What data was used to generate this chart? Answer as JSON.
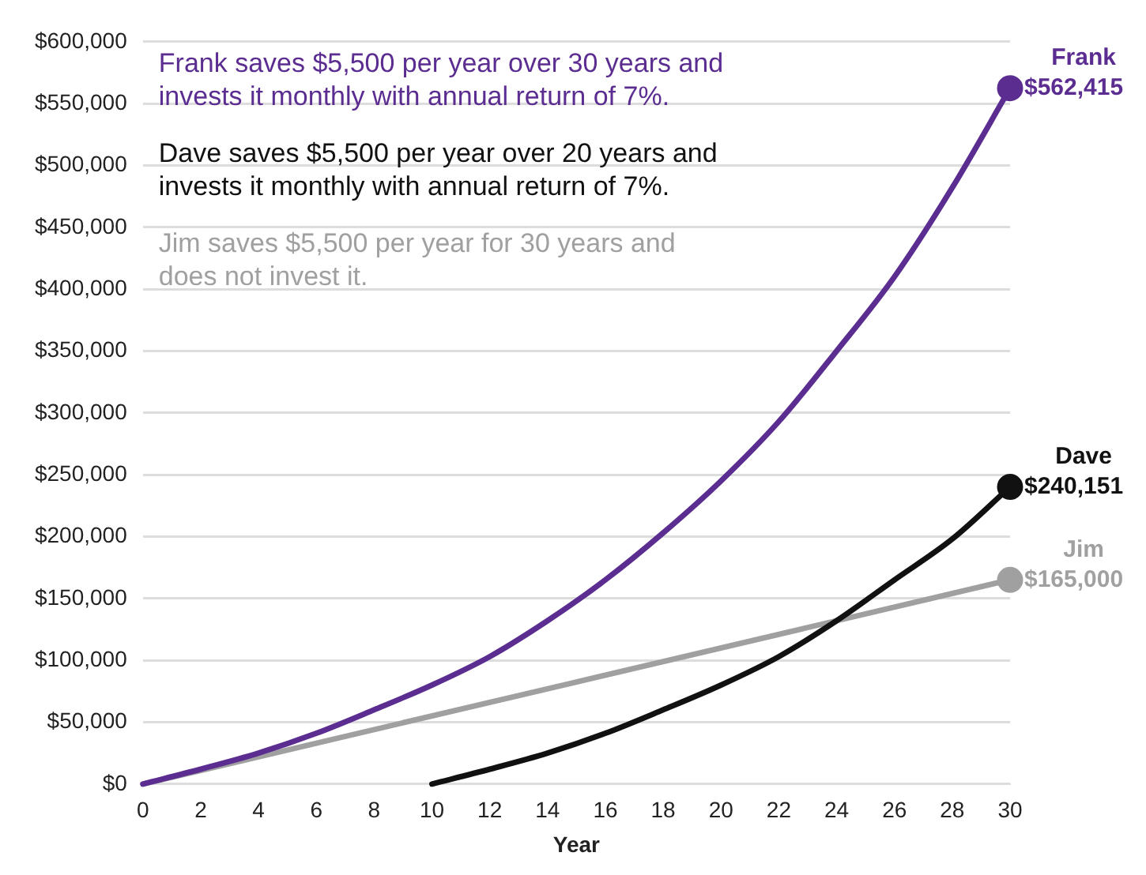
{
  "chart_data": {
    "type": "line",
    "xlabel": "Year",
    "annotations": [
      "Frank saves $5,500 per year over 30 years and invests it monthly with annual return of 7%.",
      "Dave saves $5,500 per year over 20 years and invests it monthly with annual return of 7%.",
      "Jim saves $5,500 per year for 30 years and does not invest it."
    ],
    "series": [
      {
        "color": "#5c2d91",
        "x": [
          0,
          2,
          4,
          6,
          8,
          10,
          12,
          14,
          16,
          18,
          20,
          22,
          24,
          26,
          28,
          30
        ],
        "values": [
          0,
          12000,
          25000,
          41000,
          60000,
          80000,
          103000,
          132000,
          165000,
          203000,
          245000,
          293000,
          350000,
          410000,
          482000,
          562415
        ]
      },
      {
        "color": "#111111",
        "x": [
          10,
          12,
          14,
          16,
          18,
          20,
          22,
          24,
          26,
          28,
          30
        ],
        "values": [
          0,
          12000,
          25000,
          41000,
          60000,
          80000,
          103000,
          132000,
          165000,
          198000,
          240151
        ]
      },
      {
        "color": "#a0a0a0",
        "x": [
          0,
          30
        ],
        "values": [
          0,
          165000
        ]
      },
      {
        "type": "scatter",
        "name": "Frank",
        "color": "#5c2d91",
        "x": [
          30
        ],
        "values": [
          562415
        ],
        "value_labels": [
          "$562,415"
        ],
        "marker": "circle"
      },
      {
        "type": "scatter",
        "name": "Dave",
        "color": "#111111",
        "x": [
          30
        ],
        "values": [
          240151
        ],
        "value_labels": [
          "$240,151"
        ],
        "marker": "circle"
      },
      {
        "type": "scatter",
        "name": "Jim",
        "color": "#a0a0a0",
        "x": [
          30
        ],
        "values": [
          165000
        ],
        "value_labels": [
          "$165,000"
        ],
        "marker": "circle"
      }
    ],
    "xlim": [
      0,
      30
    ],
    "xticks": [
      0,
      2,
      4,
      6,
      8,
      10,
      12,
      14,
      16,
      18,
      20,
      22,
      24,
      26,
      28,
      30
    ],
    "ylim": [
      0,
      600000
    ],
    "yticks": [
      {
        "value": 0,
        "label": "$0"
      },
      {
        "value": 50000,
        "label": "$50,000"
      },
      {
        "value": 100000,
        "label": "$100,000"
      },
      {
        "value": 150000,
        "label": "$150,000"
      },
      {
        "value": 200000,
        "label": "$200,000"
      },
      {
        "value": 250000,
        "label": "$250,000"
      },
      {
        "value": 300000,
        "label": "$300,000"
      },
      {
        "value": 350000,
        "label": "$350,000"
      },
      {
        "value": 400000,
        "label": "$400,000"
      },
      {
        "value": 450000,
        "label": "$450,000"
      },
      {
        "value": 500000,
        "label": "$500,000"
      },
      {
        "value": 550000,
        "label": "$550,000"
      },
      {
        "value": 600000,
        "label": "$600,000"
      }
    ],
    "grid": "y",
    "legend": false,
    "marker": "none",
    "line_style": "solid"
  }
}
